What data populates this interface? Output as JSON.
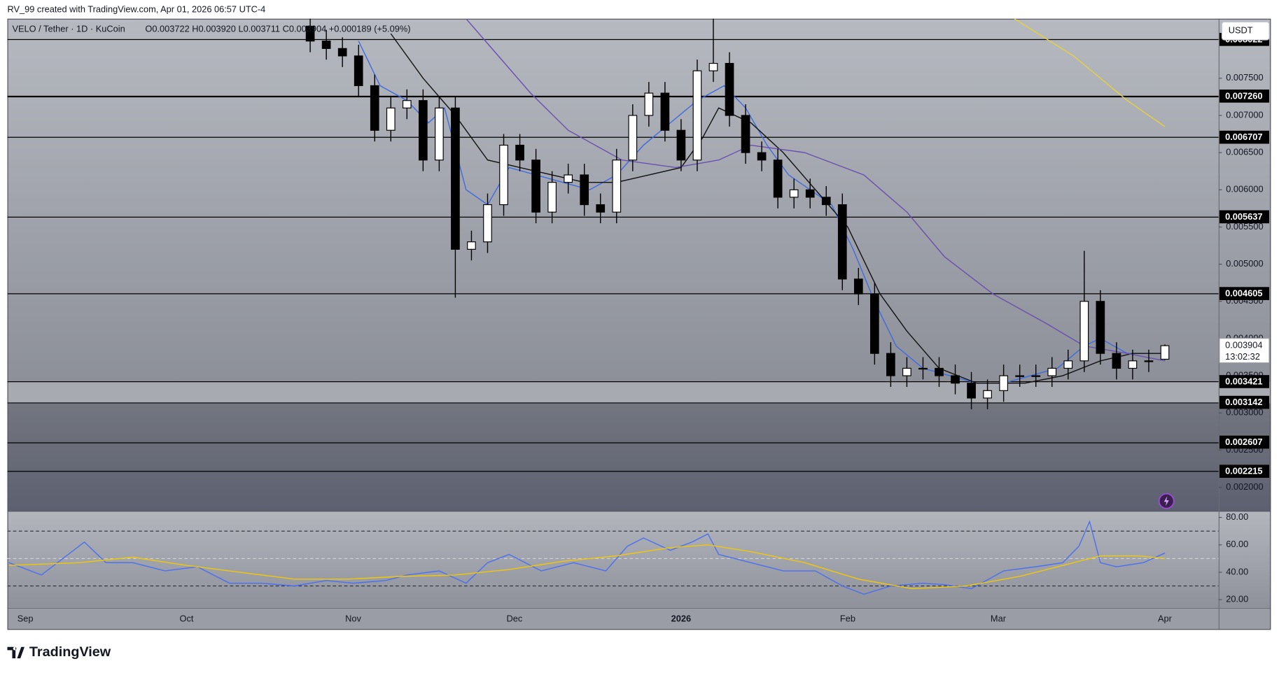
{
  "credit": "RV_99 created with TradingView.com, Apr 01, 2026 06:57 UTC-4",
  "currency_button": "USDT",
  "logo": "TradingView",
  "chart_data": [
    {
      "type": "candlestick",
      "title": "VELO / Tether · 1D · KuCoin",
      "subtitle": "O0.003722 H0.003920 L0.003711 C0.003904 +0.000189 (+5.09%)",
      "x": [
        53,
        56,
        59,
        62,
        65,
        68,
        71,
        74,
        77,
        80,
        83,
        86,
        89,
        92,
        95,
        98,
        101,
        104,
        107,
        110,
        113,
        116,
        119,
        122,
        125,
        128,
        131,
        134,
        137,
        140,
        143,
        146,
        149,
        152,
        155,
        158,
        161,
        164,
        167,
        170,
        173,
        176,
        179,
        182,
        185,
        188,
        191,
        194,
        197,
        200,
        203,
        206,
        209,
        212
      ],
      "open": [
        0.0082,
        0.008,
        0.0079,
        0.0078,
        0.0074,
        0.0068,
        0.0071,
        0.0072,
        0.0064,
        0.0071,
        0.0052,
        0.0053,
        0.0058,
        0.0066,
        0.0064,
        0.0057,
        0.0061,
        0.0062,
        0.0058,
        0.0057,
        0.0064,
        0.007,
        0.0073,
        0.0068,
        0.0064,
        0.0076,
        0.0077,
        0.007,
        0.0065,
        0.0064,
        0.0059,
        0.006,
        0.0059,
        0.0058,
        0.0048,
        0.0046,
        0.0038,
        0.0035,
        0.0036,
        0.0036,
        0.0035,
        0.0034,
        0.0032,
        0.0033,
        0.0035,
        0.0035,
        0.0035,
        0.0036,
        0.0037,
        0.0045,
        0.0038,
        0.0036,
        0.0037,
        0.003722
      ],
      "high": [
        0.00835,
        0.00815,
        0.00805,
        0.00795,
        0.00755,
        0.00725,
        0.00735,
        0.00735,
        0.00725,
        0.00725,
        0.00545,
        0.00595,
        0.00675,
        0.00675,
        0.00655,
        0.00625,
        0.00635,
        0.00635,
        0.00595,
        0.00655,
        0.00715,
        0.00745,
        0.00745,
        0.00695,
        0.00775,
        0.0086,
        0.00785,
        0.00715,
        0.00665,
        0.00655,
        0.00615,
        0.00615,
        0.00605,
        0.00595,
        0.00495,
        0.00475,
        0.00395,
        0.00375,
        0.00375,
        0.00375,
        0.00365,
        0.00355,
        0.00345,
        0.00365,
        0.00365,
        0.00365,
        0.00375,
        0.00385,
        0.00518,
        0.00465,
        0.00395,
        0.00385,
        0.00385,
        0.00392
      ],
      "low": [
        0.00785,
        0.00775,
        0.00765,
        0.00725,
        0.00665,
        0.00665,
        0.00695,
        0.00625,
        0.00625,
        0.00455,
        0.00505,
        0.00515,
        0.00565,
        0.00625,
        0.00555,
        0.00555,
        0.00595,
        0.00565,
        0.00555,
        0.00555,
        0.00625,
        0.00685,
        0.00665,
        0.00625,
        0.00625,
        0.00745,
        0.00685,
        0.00635,
        0.00625,
        0.00575,
        0.00575,
        0.00575,
        0.00565,
        0.00465,
        0.00445,
        0.00365,
        0.00335,
        0.00335,
        0.00345,
        0.00335,
        0.00325,
        0.00305,
        0.00305,
        0.00315,
        0.00335,
        0.00335,
        0.00335,
        0.00345,
        0.00355,
        0.00365,
        0.00345,
        0.00345,
        0.00355,
        0.003711
      ],
      "close": [
        0.008,
        0.0079,
        0.0078,
        0.0074,
        0.0068,
        0.0071,
        0.0072,
        0.0064,
        0.0071,
        0.0052,
        0.0053,
        0.0058,
        0.0066,
        0.0064,
        0.0057,
        0.0061,
        0.0062,
        0.0058,
        0.0057,
        0.0064,
        0.007,
        0.0073,
        0.0068,
        0.0064,
        0.0076,
        0.0077,
        0.007,
        0.0065,
        0.0064,
        0.0059,
        0.006,
        0.0059,
        0.0058,
        0.0048,
        0.0046,
        0.0038,
        0.0035,
        0.0036,
        0.0036,
        0.0035,
        0.0034,
        0.0032,
        0.0033,
        0.0035,
        0.0035,
        0.0035,
        0.0036,
        0.0037,
        0.0045,
        0.0038,
        0.0036,
        0.0037,
        0.0037,
        0.003904
      ],
      "up_color": "#ffffff",
      "down_color": "#000000",
      "xlim": [
        -3.34,
        222
      ],
      "xticks": [
        {
          "value": 0,
          "label": "Sep"
        },
        {
          "value": 30,
          "label": "Oct"
        },
        {
          "value": 61,
          "label": "Nov"
        },
        {
          "value": 91,
          "label": "Dec"
        },
        {
          "value": 122,
          "label": "2026"
        },
        {
          "value": 153,
          "label": "Feb"
        },
        {
          "value": 181,
          "label": "Mar"
        },
        {
          "value": 212,
          "label": "Apr"
        }
      ],
      "ylim": [
        0.001683,
        0.0083
      ],
      "yticks": [
        {
          "value": 0.0075,
          "label": "0.007500"
        },
        {
          "value": 0.007,
          "label": "0.007000"
        },
        {
          "value": 0.0065,
          "label": "0.006500"
        },
        {
          "value": 0.006,
          "label": "0.006000"
        },
        {
          "value": 0.0055,
          "label": "0.005500"
        },
        {
          "value": 0.005,
          "label": "0.005000"
        },
        {
          "value": 0.0045,
          "label": "0.004500"
        },
        {
          "value": 0.004,
          "label": "0.004000"
        },
        {
          "value": 0.0035,
          "label": "0.003500"
        },
        {
          "value": 0.003,
          "label": "0.003000"
        },
        {
          "value": 0.0025,
          "label": "0.002500"
        },
        {
          "value": 0.002,
          "label": "0.002000"
        }
      ],
      "moving_averages": [
        {
          "color": "#3d6be0",
          "x": [
            62,
            66,
            71,
            75,
            78,
            82,
            86,
            90,
            95,
            100,
            105,
            110,
            115,
            120,
            125,
            130,
            134,
            138,
            142,
            146,
            150,
            154,
            158,
            162,
            167,
            172,
            177,
            182,
            187,
            192,
            197,
            200,
            205,
            210,
            212
          ],
          "values": [
            0.008,
            0.0074,
            0.0072,
            0.0069,
            0.0071,
            0.006,
            0.0058,
            0.0063,
            0.0062,
            0.0061,
            0.006,
            0.0062,
            0.0066,
            0.0069,
            0.0072,
            0.0074,
            0.0071,
            0.0066,
            0.0062,
            0.006,
            0.0058,
            0.0052,
            0.0045,
            0.0039,
            0.0036,
            0.0035,
            0.0034,
            0.0034,
            0.0035,
            0.0036,
            0.0039,
            0.004,
            0.0038,
            0.0038,
            0.0038
          ]
        },
        {
          "color": "#111111",
          "x": [
            68,
            74,
            80,
            86,
            92,
            98,
            104,
            110,
            116,
            122,
            126,
            129,
            135,
            141,
            147,
            153,
            159,
            164,
            170,
            177,
            186,
            193,
            200,
            206,
            212
          ],
          "values": [
            0.0081,
            0.0075,
            0.007,
            0.0064,
            0.0063,
            0.0062,
            0.0061,
            0.0061,
            0.0062,
            0.0063,
            0.0067,
            0.0071,
            0.0069,
            0.0065,
            0.006,
            0.0055,
            0.0046,
            0.0041,
            0.0036,
            0.0034,
            0.0034,
            0.0035,
            0.0037,
            0.0038,
            0.0038
          ]
        },
        {
          "color": "#6a4fb0",
          "x": [
            82,
            88,
            94,
            101,
            111,
            121,
            129,
            135,
            145,
            156,
            164,
            171,
            180,
            190,
            197,
            205,
            212
          ],
          "values": [
            0.0083,
            0.0078,
            0.0073,
            0.0068,
            0.0064,
            0.0063,
            0.0064,
            0.0066,
            0.0065,
            0.0062,
            0.0057,
            0.0051,
            0.0046,
            0.0042,
            0.0039,
            0.0038,
            0.0037
          ]
        },
        {
          "color": "#e6d23c",
          "x": [
            184,
            195,
            205,
            212
          ],
          "values": [
            0.0083,
            0.0078,
            0.0072,
            0.00685
          ]
        }
      ],
      "levels": [
        0.008022,
        {
          "value": 0.00726,
          "label": "0.007260"
        },
        0.006707,
        0.005637,
        0.004605,
        0.003421,
        0.003142,
        0.002607,
        0.002215
      ],
      "level_widths": [
        1,
        2,
        1,
        1,
        1,
        1,
        1,
        1,
        1
      ],
      "last_price": 0.003904,
      "countdown": "13:02:32"
    },
    {
      "type": "line",
      "xlim": [
        -3.34,
        222
      ],
      "ylim": [
        14.06,
        84.2
      ],
      "yticks": [
        {
          "value": 80,
          "label": "80.00"
        },
        {
          "value": 60,
          "label": "60.00"
        },
        {
          "value": 40,
          "label": "40.00"
        },
        {
          "value": 20,
          "label": "20.00"
        }
      ],
      "levels": [
        70,
        50,
        30
      ],
      "series": [
        {
          "color": "#4a6ff0",
          "x": [
            -3,
            3,
            7,
            11,
            15,
            20,
            26,
            32,
            38,
            44,
            50,
            56,
            61,
            67,
            71,
            77,
            82,
            86,
            90,
            96,
            102,
            108,
            112,
            115,
            120,
            124,
            127,
            129,
            135,
            141,
            147,
            152,
            156,
            161,
            167,
            171,
            176,
            182,
            188,
            193,
            196,
            198,
            200,
            203,
            208,
            212
          ],
          "values": [
            47,
            38,
            50,
            62,
            47,
            47,
            41,
            44,
            32,
            32,
            30,
            34,
            32,
            34,
            38,
            41,
            32,
            47,
            53,
            41,
            47,
            41,
            59,
            65,
            56,
            62,
            68,
            53,
            47,
            41,
            41,
            30,
            24,
            30,
            32,
            31,
            28,
            41,
            44,
            47,
            59,
            77,
            47,
            44,
            47,
            54
          ]
        },
        {
          "color": "#f0c808",
          "x": [
            -3,
            10,
            20,
            30,
            40,
            50,
            60,
            70,
            80,
            90,
            100,
            110,
            120,
            127,
            135,
            145,
            155,
            165,
            175,
            185,
            195,
            200,
            207,
            212
          ],
          "values": [
            45,
            47,
            51,
            45,
            40,
            35,
            35,
            37,
            38,
            42,
            48,
            52,
            58,
            60,
            55,
            47,
            35,
            28,
            30,
            37,
            47,
            52,
            52,
            50
          ]
        }
      ]
    }
  ]
}
